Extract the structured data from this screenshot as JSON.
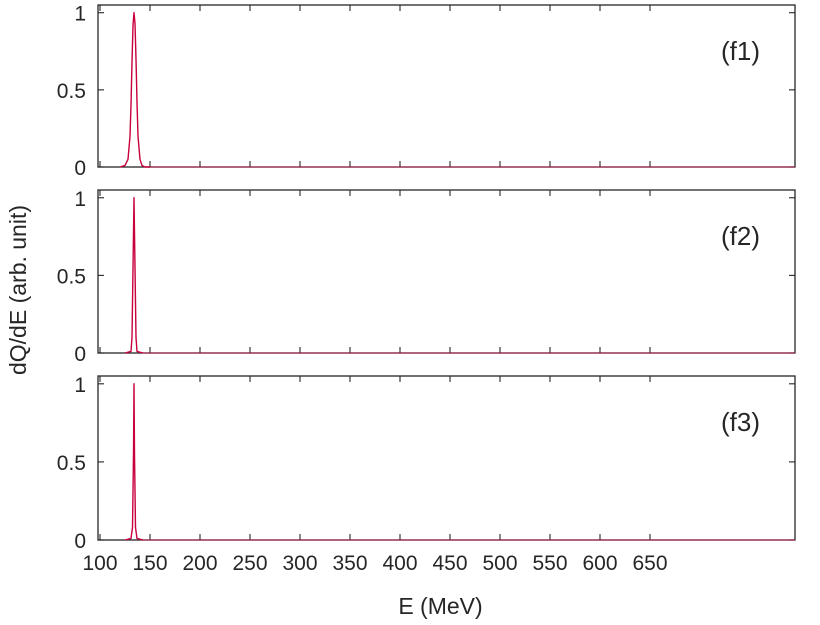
{
  "chart_data": {
    "type": "line",
    "xlabel": "E (MeV)",
    "ylabel": "dQ/dE (arb. unit)",
    "xlim": [
      98,
      795
    ],
    "ylim": [
      0,
      1.05
    ],
    "xticks": [
      "100",
      "150",
      "200",
      "250",
      "300",
      "350",
      "400",
      "450",
      "500",
      "550",
      "600",
      "650"
    ],
    "yticks": [
      "0",
      "0.5",
      "1"
    ],
    "grid": false,
    "colors": {
      "line": "#c8003c",
      "axis": "#262626"
    },
    "panels": [
      {
        "label": "(f1)",
        "series": [
          {
            "x": [
              120,
              125,
              128,
              130,
              131,
              132,
              133,
              134,
              135,
              136,
              137,
              138,
              140,
              142,
              145,
              150
            ],
            "y": [
              0,
              0.01,
              0.05,
              0.2,
              0.4,
              0.68,
              0.92,
              1.0,
              0.93,
              0.7,
              0.42,
              0.2,
              0.05,
              0.01,
              0,
              0
            ]
          }
        ]
      },
      {
        "label": "(f2)",
        "series": [
          {
            "x": [
              125,
              131,
              132,
              133,
              134,
              135,
              136,
              137,
              143
            ],
            "y": [
              0,
              0.01,
              0.1,
              0.55,
              1.0,
              0.55,
              0.1,
              0.01,
              0
            ]
          }
        ]
      },
      {
        "label": "(f3)",
        "series": [
          {
            "x": [
              125,
              131,
              132.5,
              133.5,
              134,
              134.5,
              135.5,
              137,
              143
            ],
            "y": [
              0,
              0.01,
              0.08,
              0.55,
              1.0,
              0.55,
              0.08,
              0.01,
              0
            ]
          }
        ]
      }
    ]
  }
}
